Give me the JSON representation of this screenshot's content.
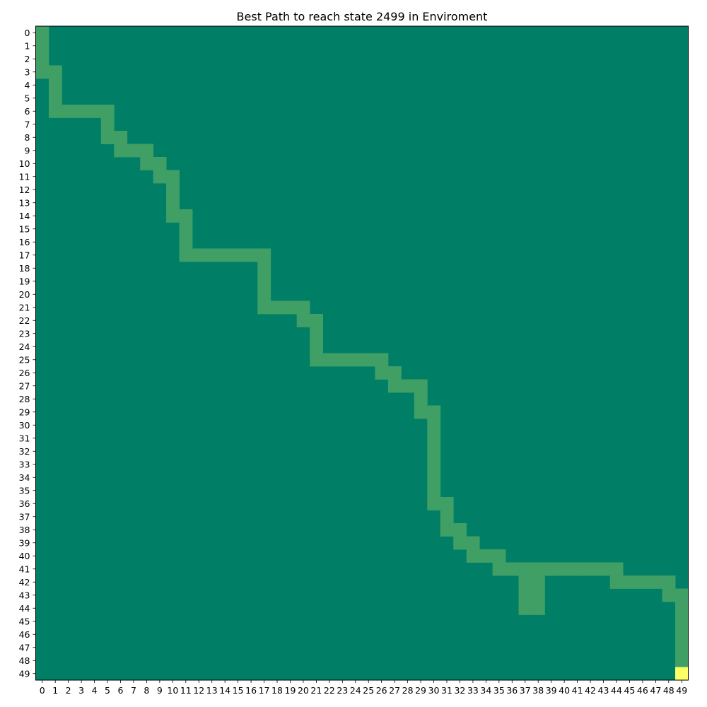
{
  "chart_data": {
    "type": "heatmap",
    "title": "Best Path to reach state 2499 in Enviroment",
    "grid": false,
    "legend": "none",
    "rows": 50,
    "cols": 50,
    "x_ticks": [
      "0",
      "1",
      "2",
      "3",
      "4",
      "5",
      "6",
      "7",
      "8",
      "9",
      "10",
      "11",
      "12",
      "13",
      "14",
      "15",
      "16",
      "17",
      "18",
      "19",
      "20",
      "21",
      "22",
      "23",
      "24",
      "25",
      "26",
      "27",
      "28",
      "29",
      "30",
      "31",
      "32",
      "33",
      "34",
      "35",
      "36",
      "37",
      "38",
      "39",
      "40",
      "41",
      "42",
      "43",
      "44",
      "45",
      "46",
      "47",
      "48",
      "49"
    ],
    "y_ticks": [
      "0",
      "1",
      "2",
      "3",
      "4",
      "5",
      "6",
      "7",
      "8",
      "9",
      "10",
      "11",
      "12",
      "13",
      "14",
      "15",
      "16",
      "17",
      "18",
      "19",
      "20",
      "21",
      "22",
      "23",
      "24",
      "25",
      "26",
      "27",
      "28",
      "29",
      "30",
      "31",
      "32",
      "33",
      "34",
      "35",
      "36",
      "37",
      "38",
      "39",
      "40",
      "41",
      "42",
      "43",
      "44",
      "45",
      "46",
      "47",
      "48",
      "49"
    ],
    "colors": {
      "background": "#007f66",
      "path": "#3f9f65",
      "goal": "#ffff66"
    },
    "goal": [
      49,
      49
    ],
    "path_cells": [
      [
        0,
        0
      ],
      [
        1,
        0
      ],
      [
        2,
        0
      ],
      [
        3,
        0
      ],
      [
        3,
        1
      ],
      [
        4,
        1
      ],
      [
        5,
        1
      ],
      [
        6,
        1
      ],
      [
        6,
        2
      ],
      [
        6,
        3
      ],
      [
        6,
        4
      ],
      [
        6,
        5
      ],
      [
        7,
        5
      ],
      [
        8,
        5
      ],
      [
        8,
        6
      ],
      [
        9,
        6
      ],
      [
        9,
        7
      ],
      [
        9,
        8
      ],
      [
        10,
        8
      ],
      [
        10,
        9
      ],
      [
        11,
        9
      ],
      [
        11,
        10
      ],
      [
        12,
        10
      ],
      [
        13,
        10
      ],
      [
        14,
        10
      ],
      [
        14,
        11
      ],
      [
        15,
        11
      ],
      [
        16,
        11
      ],
      [
        17,
        11
      ],
      [
        17,
        12
      ],
      [
        17,
        13
      ],
      [
        17,
        14
      ],
      [
        17,
        15
      ],
      [
        17,
        16
      ],
      [
        17,
        17
      ],
      [
        18,
        17
      ],
      [
        19,
        17
      ],
      [
        20,
        17
      ],
      [
        21,
        17
      ],
      [
        21,
        18
      ],
      [
        21,
        19
      ],
      [
        21,
        20
      ],
      [
        22,
        20
      ],
      [
        22,
        21
      ],
      [
        23,
        21
      ],
      [
        24,
        21
      ],
      [
        25,
        21
      ],
      [
        25,
        22
      ],
      [
        25,
        23
      ],
      [
        25,
        24
      ],
      [
        25,
        25
      ],
      [
        25,
        26
      ],
      [
        26,
        26
      ],
      [
        26,
        27
      ],
      [
        27,
        27
      ],
      [
        27,
        28
      ],
      [
        27,
        29
      ],
      [
        28,
        29
      ],
      [
        29,
        29
      ],
      [
        29,
        30
      ],
      [
        30,
        30
      ],
      [
        31,
        30
      ],
      [
        32,
        30
      ],
      [
        33,
        30
      ],
      [
        34,
        30
      ],
      [
        35,
        30
      ],
      [
        36,
        30
      ],
      [
        36,
        31
      ],
      [
        37,
        31
      ],
      [
        38,
        31
      ],
      [
        38,
        32
      ],
      [
        39,
        32
      ],
      [
        39,
        33
      ],
      [
        40,
        33
      ],
      [
        40,
        34
      ],
      [
        40,
        35
      ],
      [
        41,
        35
      ],
      [
        41,
        36
      ],
      [
        41,
        37
      ],
      [
        41,
        38
      ],
      [
        42,
        37
      ],
      [
        43,
        37
      ],
      [
        44,
        37
      ],
      [
        42,
        38
      ],
      [
        43,
        38
      ],
      [
        44,
        38
      ],
      [
        41,
        39
      ],
      [
        41,
        40
      ],
      [
        41,
        41
      ],
      [
        41,
        42
      ],
      [
        41,
        43
      ],
      [
        41,
        44
      ],
      [
        42,
        44
      ],
      [
        42,
        45
      ],
      [
        42,
        46
      ],
      [
        42,
        47
      ],
      [
        42,
        48
      ],
      [
        43,
        48
      ],
      [
        43,
        49
      ],
      [
        44,
        49
      ],
      [
        45,
        49
      ],
      [
        46,
        49
      ],
      [
        47,
        49
      ],
      [
        48,
        49
      ]
    ]
  }
}
